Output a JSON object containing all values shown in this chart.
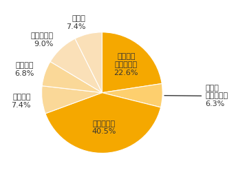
{
  "labels": [
    "短冊だけ\nとっておく",
    "笹ごと\nとっておく",
    "ゴミに出す",
    "奉納する",
    "川に流す",
    "火で燃やす",
    "その他"
  ],
  "values": [
    22.6,
    6.3,
    40.5,
    7.4,
    6.8,
    9.0,
    7.4
  ],
  "colors": [
    "#F5A800",
    "#FDCF6E",
    "#F5A800",
    "#FAD898",
    "#FAD898",
    "#FAE0B8",
    "#FAE0B8"
  ],
  "startangle": 90,
  "background_color": "#ffffff",
  "text_color": "#333333",
  "font_size": 8.0,
  "inside_color": "#333333"
}
